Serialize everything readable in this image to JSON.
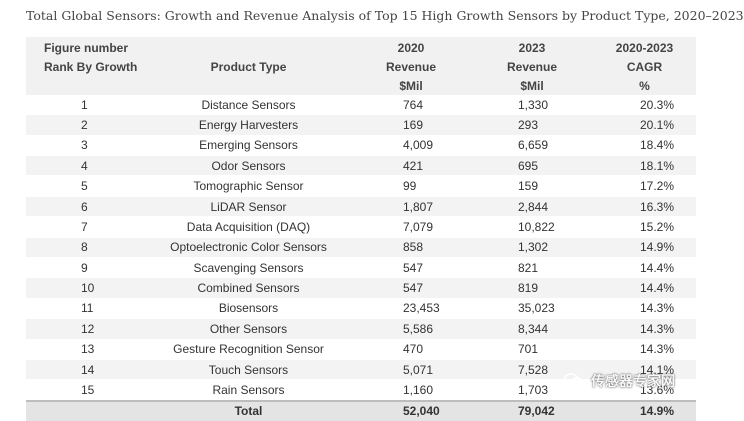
{
  "caption": "Total Global Sensors: Growth and Revenue Analysis of Top 15 High Growth Sensors by Product Type, 2020–2023",
  "header": {
    "row1": [
      "Figure number",
      "",
      "2020",
      "2023",
      "2020-2023"
    ],
    "row2": [
      "Rank By Growth",
      "Product Type",
      "Revenue",
      "Revenue",
      "CAGR"
    ],
    "row3": [
      "",
      "",
      "$Mil",
      "$Mil",
      "%"
    ]
  },
  "rows": [
    {
      "rank": "1",
      "product": "Distance Sensors",
      "rev2020": "764",
      "rev2023": "1,330",
      "cagr": "20.3%"
    },
    {
      "rank": "2",
      "product": "Energy Harvesters",
      "rev2020": "169",
      "rev2023": "293",
      "cagr": "20.1%"
    },
    {
      "rank": "3",
      "product": "Emerging Sensors",
      "rev2020": "4,009",
      "rev2023": "6,659",
      "cagr": "18.4%"
    },
    {
      "rank": "4",
      "product": "Odor Sensors",
      "rev2020": "421",
      "rev2023": "695",
      "cagr": "18.1%"
    },
    {
      "rank": "5",
      "product": "Tomographic Sensor",
      "rev2020": "99",
      "rev2023": "159",
      "cagr": "17.2%"
    },
    {
      "rank": "6",
      "product": "LiDAR Sensor",
      "rev2020": "1,807",
      "rev2023": "2,844",
      "cagr": "16.3%"
    },
    {
      "rank": "7",
      "product": "Data Acquisition (DAQ)",
      "rev2020": "7,079",
      "rev2023": "10,822",
      "cagr": "15.2%"
    },
    {
      "rank": "8",
      "product": "Optoelectronic Color Sensors",
      "rev2020": "858",
      "rev2023": "1,302",
      "cagr": "14.9%"
    },
    {
      "rank": "9",
      "product": "Scavenging Sensors",
      "rev2020": "547",
      "rev2023": "821",
      "cagr": "14.4%"
    },
    {
      "rank": "10",
      "product": "Combined Sensors",
      "rev2020": "547",
      "rev2023": "819",
      "cagr": "14.4%"
    },
    {
      "rank": "11",
      "product": "Biosensors",
      "rev2020": "23,453",
      "rev2023": "35,023",
      "cagr": "14.3%"
    },
    {
      "rank": "12",
      "product": "Other Sensors",
      "rev2020": "5,586",
      "rev2023": "8,344",
      "cagr": "14.3%"
    },
    {
      "rank": "13",
      "product": "Gesture Recognition Sensor",
      "rev2020": "470",
      "rev2023": "701",
      "cagr": "14.3%"
    },
    {
      "rank": "14",
      "product": "Touch Sensors",
      "rev2020": "5,071",
      "rev2023": "7,528",
      "cagr": "14.1%"
    },
    {
      "rank": "15",
      "product": "Rain Sensors",
      "rev2020": "1,160",
      "rev2023": "1,703",
      "cagr": "13.6%"
    }
  ],
  "total": {
    "label": "Total",
    "rev2020": "52,040",
    "rev2023": "79,042",
    "cagr": "14.9%"
  },
  "watermark": {
    "text": "传感器专家网"
  }
}
